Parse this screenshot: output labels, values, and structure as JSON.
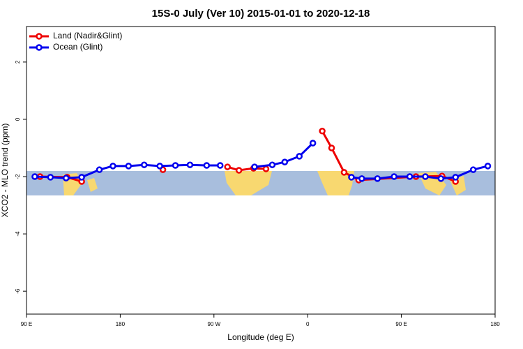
{
  "chart_data": {
    "type": "line",
    "title": "15S-0 July (Ver 10)   2015-01-01 to 2020-12-18",
    "x_label": "Longitude (deg E)",
    "y_label": "XCO2 - MLO trend (ppm)",
    "xlim": [
      90,
      540
    ],
    "ylim": [
      -6.8,
      3.24
    ],
    "xticks": [
      {
        "value": 90,
        "label": "90 E"
      },
      180,
      {
        "value": 270,
        "label": "90 W"
      },
      {
        "value": 360,
        "label": "0"
      },
      {
        "value": 450,
        "label": "90 E"
      },
      {
        "value": 540,
        "label": "180"
      }
    ],
    "yticks": [
      -6,
      -4,
      -2,
      0,
      2
    ],
    "legend": "top-left",
    "series": [
      {
        "name": "Land (Nadir&Glint)",
        "color": "#ee0000",
        "x": [
          103,
          129,
          143,
          null,
          221,
          null,
          283,
          294,
          308,
          320,
          null,
          374,
          383,
          395,
          409,
          464,
          489,
          502
        ],
        "values": [
          -2.0,
          -2.02,
          -2.17,
          null,
          -1.76,
          null,
          -1.66,
          -1.78,
          -1.71,
          -1.73,
          null,
          -0.41,
          -1.0,
          -1.85,
          -2.12,
          -2.0,
          -1.98,
          -2.17
        ]
      },
      {
        "name": "Ocean (Glint)",
        "color": "#0000ee",
        "x": [
          98,
          113,
          128,
          143,
          160,
          173,
          188,
          203,
          218,
          233,
          247,
          263,
          276,
          null,
          309,
          326,
          338,
          352,
          365,
          null,
          402,
          412,
          427,
          443,
          458,
          473,
          488,
          502,
          519,
          533
        ],
        "values": [
          -2.0,
          -2.02,
          -2.05,
          -2.02,
          -1.76,
          -1.63,
          -1.63,
          -1.59,
          -1.63,
          -1.61,
          -1.59,
          -1.61,
          -1.61,
          null,
          -1.66,
          -1.59,
          -1.49,
          -1.29,
          -0.83,
          null,
          -2.02,
          -2.07,
          -2.07,
          -2.0,
          -2.0,
          -2.0,
          -2.07,
          -2.02,
          -1.76,
          -1.63
        ]
      }
    ]
  }
}
